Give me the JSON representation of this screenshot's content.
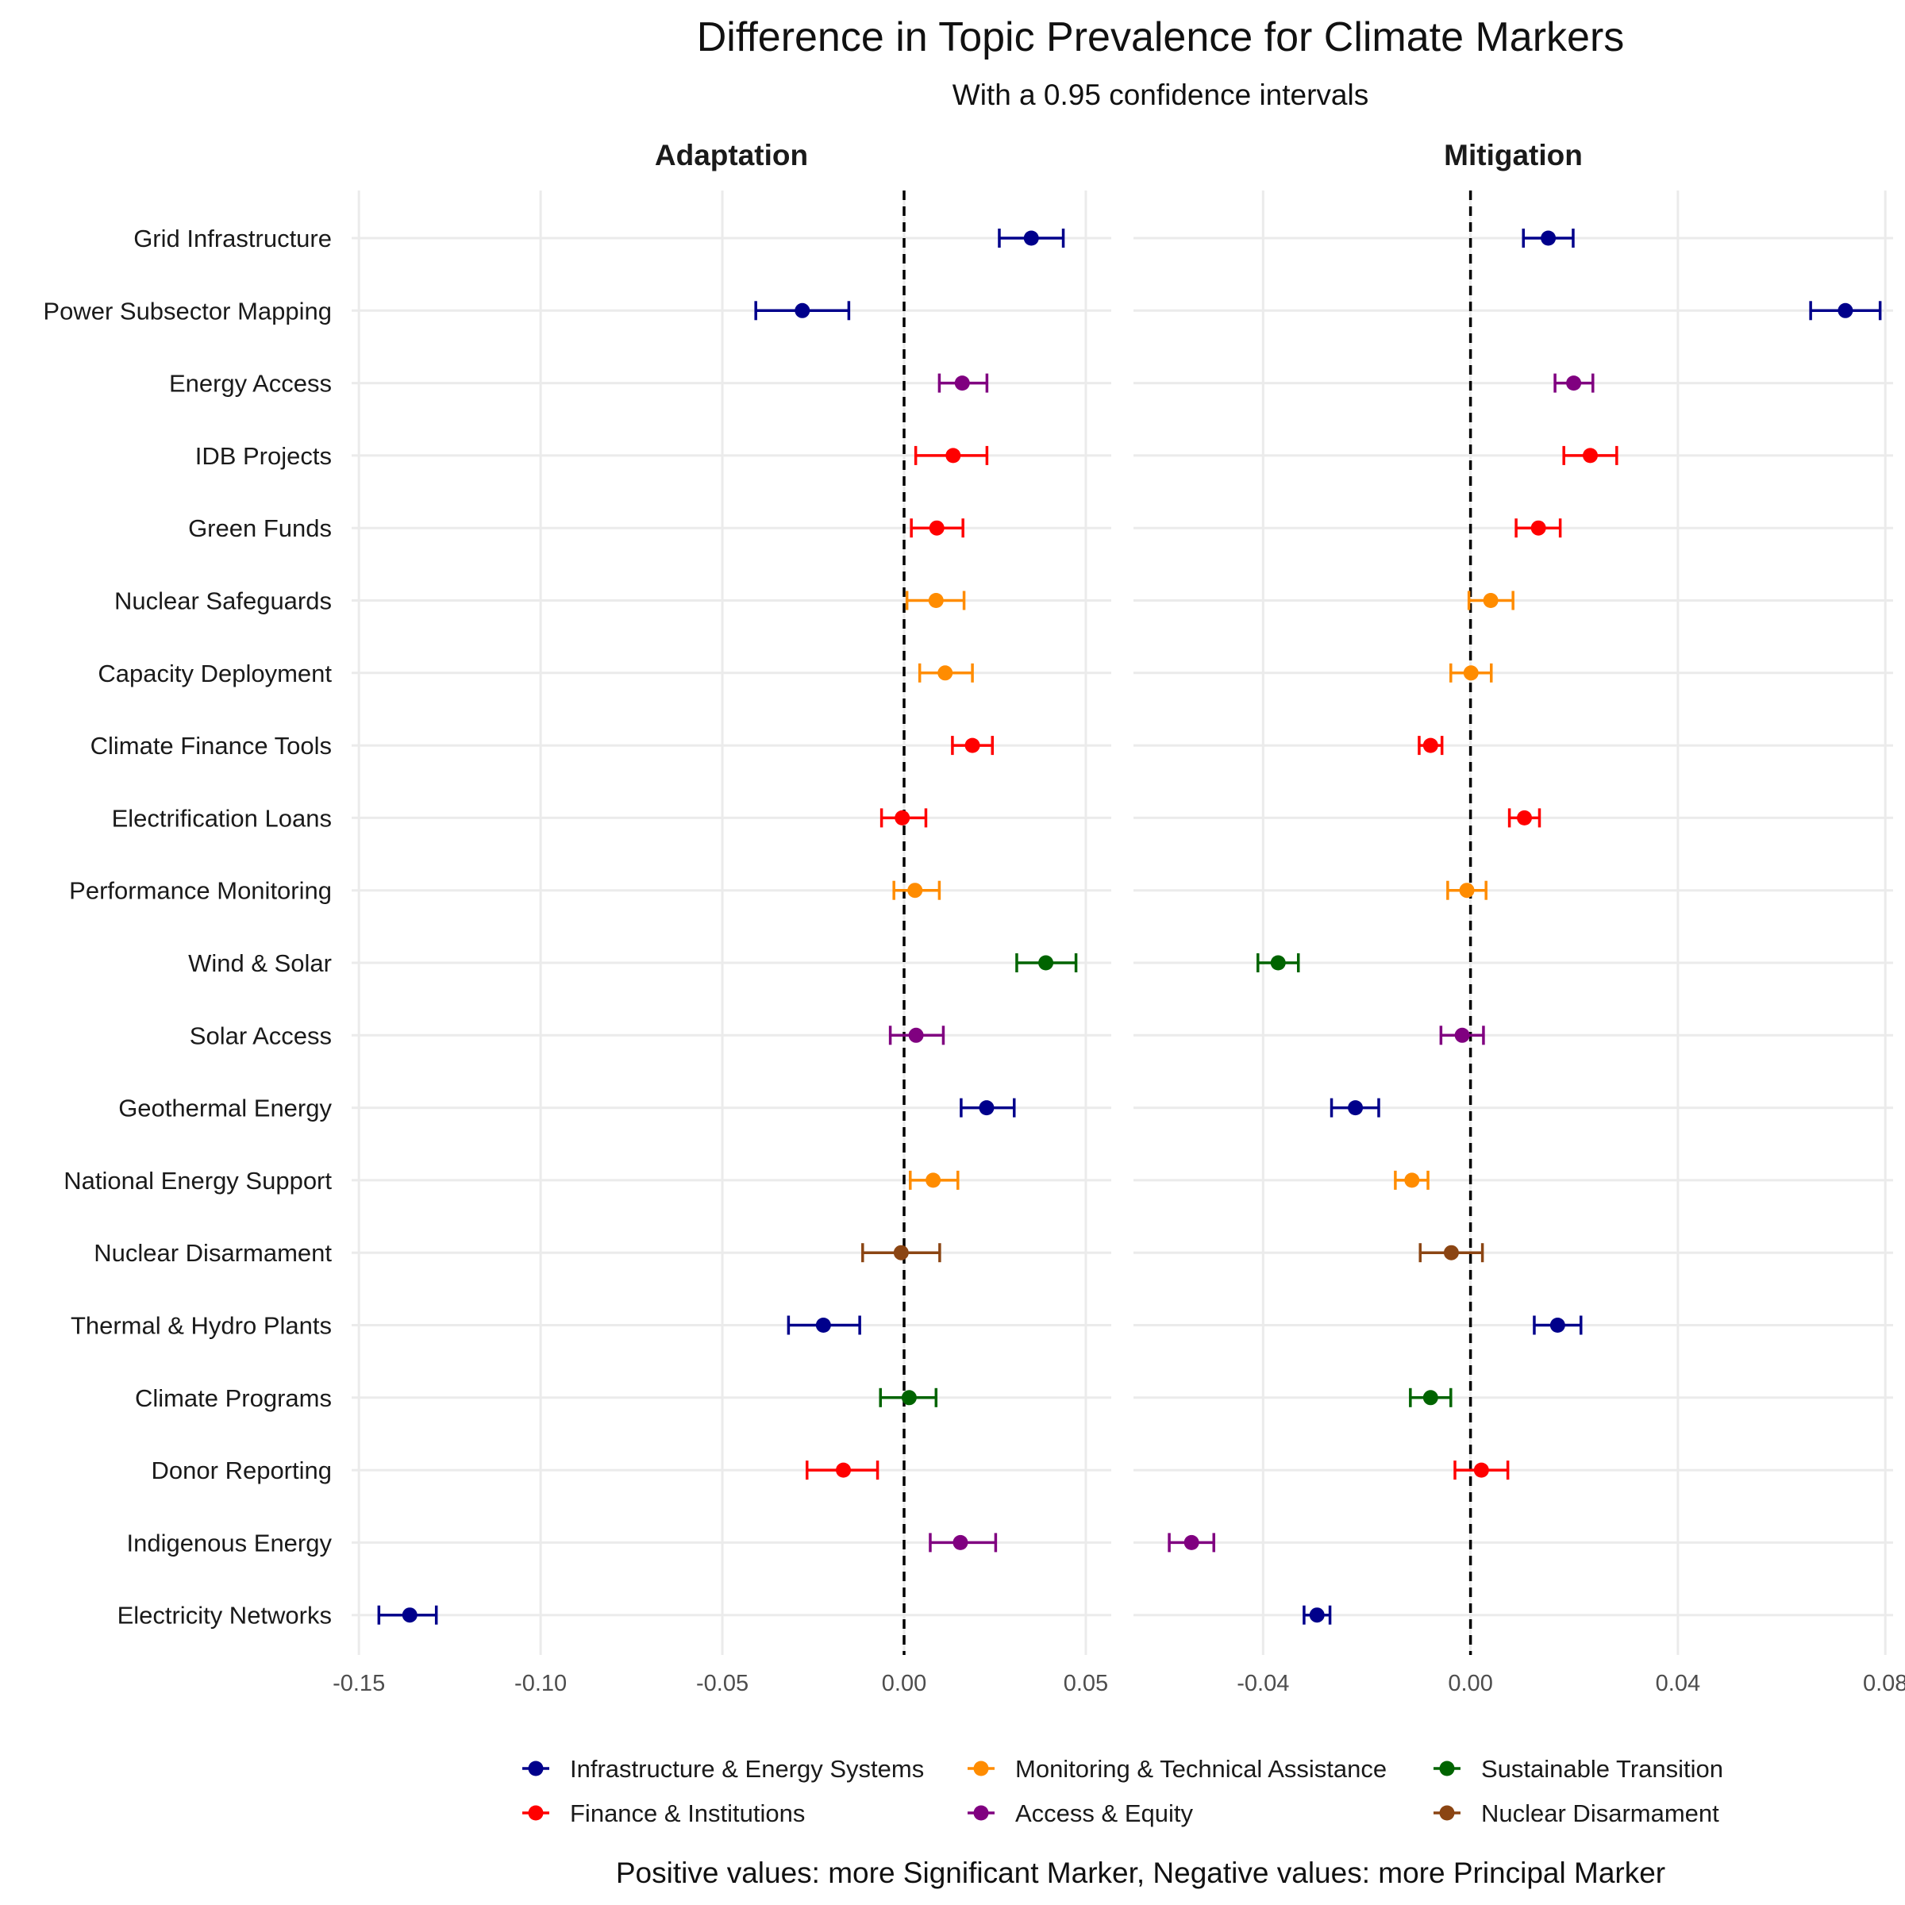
{
  "title": "Difference in Topic Prevalence for Climate Markers",
  "subtitle": "With a 0.95 confidence intervals",
  "caption": "Positive values: more Significant Marker, Negative values: more Principal Marker",
  "legend": [
    {
      "name": "Infrastructure & Energy Systems",
      "color": "#00008B"
    },
    {
      "name": "Monitoring & Technical Assistance",
      "color": "#FF8C00"
    },
    {
      "name": "Sustainable Transition",
      "color": "#006400"
    },
    {
      "name": "Finance & Institutions",
      "color": "#FF0000"
    },
    {
      "name": "Access & Equity",
      "color": "#800080"
    },
    {
      "name": "Nuclear Disarmament",
      "color": "#8B4513"
    }
  ],
  "chart_data": {
    "type": "scatter",
    "style": "point estimates with horizontal confidence-interval error bars, faceted",
    "grid": true,
    "legend_position": "bottom",
    "reference_line": {
      "x": 0,
      "style": "dashed"
    },
    "topics": [
      "Grid Infrastructure",
      "Power Subsector Mapping",
      "Energy Access",
      "IDB Projects",
      "Green Funds",
      "Nuclear Safeguards",
      "Capacity Deployment",
      "Climate Finance Tools",
      "Electrification Loans",
      "Performance Monitoring",
      "Wind & Solar",
      "Solar Access",
      "Geothermal Energy",
      "National Energy Support",
      "Nuclear Disarmament",
      "Thermal & Hydro Plants",
      "Climate Programs",
      "Donor Reporting",
      "Indigenous Energy",
      "Electricity Networks"
    ],
    "groups": [
      "Infrastructure & Energy Systems",
      "Infrastructure & Energy Systems",
      "Access & Equity",
      "Finance & Institutions",
      "Finance & Institutions",
      "Monitoring & Technical Assistance",
      "Monitoring & Technical Assistance",
      "Finance & Institutions",
      "Finance & Institutions",
      "Monitoring & Technical Assistance",
      "Sustainable Transition",
      "Access & Equity",
      "Infrastructure & Energy Systems",
      "Monitoring & Technical Assistance",
      "Nuclear Disarmament",
      "Infrastructure & Energy Systems",
      "Sustainable Transition",
      "Finance & Institutions",
      "Access & Equity",
      "Infrastructure & Energy Systems"
    ],
    "facets": [
      {
        "name": "Adaptation",
        "xlim": [
          -0.152,
          0.057
        ],
        "xticks": [
          -0.15,
          -0.1,
          -0.05,
          0.0,
          0.05
        ],
        "xtick_labels": [
          "-0.15",
          "-0.10",
          "-0.05",
          "0.00",
          "0.05"
        ],
        "estimates": [
          0.035,
          -0.028,
          0.016,
          0.0135,
          0.009,
          0.0088,
          0.0113,
          0.0188,
          -0.0005,
          0.003,
          0.039,
          0.0033,
          0.0227,
          0.008,
          -0.0008,
          -0.0222,
          0.0014,
          -0.0167,
          0.0155,
          -0.136
        ],
        "lower": [
          0.0262,
          -0.0408,
          0.0097,
          0.0032,
          0.002,
          0.0008,
          0.0043,
          0.0133,
          -0.0062,
          -0.0028,
          0.031,
          -0.0038,
          0.0157,
          0.0017,
          -0.0114,
          -0.0318,
          -0.0065,
          -0.0267,
          0.0072,
          -0.1445
        ],
        "upper": [
          0.0438,
          -0.0152,
          0.0228,
          0.0228,
          0.0162,
          0.0165,
          0.0188,
          0.0243,
          0.006,
          0.0097,
          0.0473,
          0.0108,
          0.0303,
          0.0148,
          0.0098,
          -0.0122,
          0.0088,
          -0.0073,
          0.0252,
          -0.1287
        ]
      },
      {
        "name": "Mitigation",
        "xlim": [
          -0.065,
          0.0815
        ],
        "xticks": [
          -0.04,
          0.0,
          0.04,
          0.08
        ],
        "xtick_labels": [
          "-0.04",
          "0.00",
          "0.04",
          "0.08"
        ],
        "estimates": [
          0.015,
          0.0723,
          0.0199,
          0.0231,
          0.0131,
          0.0039,
          0.0001,
          -0.0077,
          0.0104,
          -0.0007,
          -0.0371,
          -0.0016,
          -0.0222,
          -0.0113,
          -0.0037,
          0.0168,
          -0.0077,
          0.0021,
          -0.0538,
          -0.0296
        ],
        "lower": [
          0.0102,
          0.0656,
          0.0163,
          0.018,
          0.0088,
          -0.0003,
          -0.0038,
          -0.0099,
          0.0075,
          -0.0044,
          -0.041,
          -0.0057,
          -0.0268,
          -0.0145,
          -0.0097,
          0.0123,
          -0.0116,
          -0.003,
          -0.0581,
          -0.0321
        ],
        "upper": [
          0.0198,
          0.079,
          0.0236,
          0.0282,
          0.0173,
          0.0082,
          0.004,
          -0.0055,
          0.0133,
          0.003,
          -0.0332,
          0.0025,
          -0.0177,
          -0.0082,
          0.0023,
          0.0213,
          -0.0038,
          0.0072,
          -0.0495,
          -0.0271
        ]
      }
    ]
  }
}
